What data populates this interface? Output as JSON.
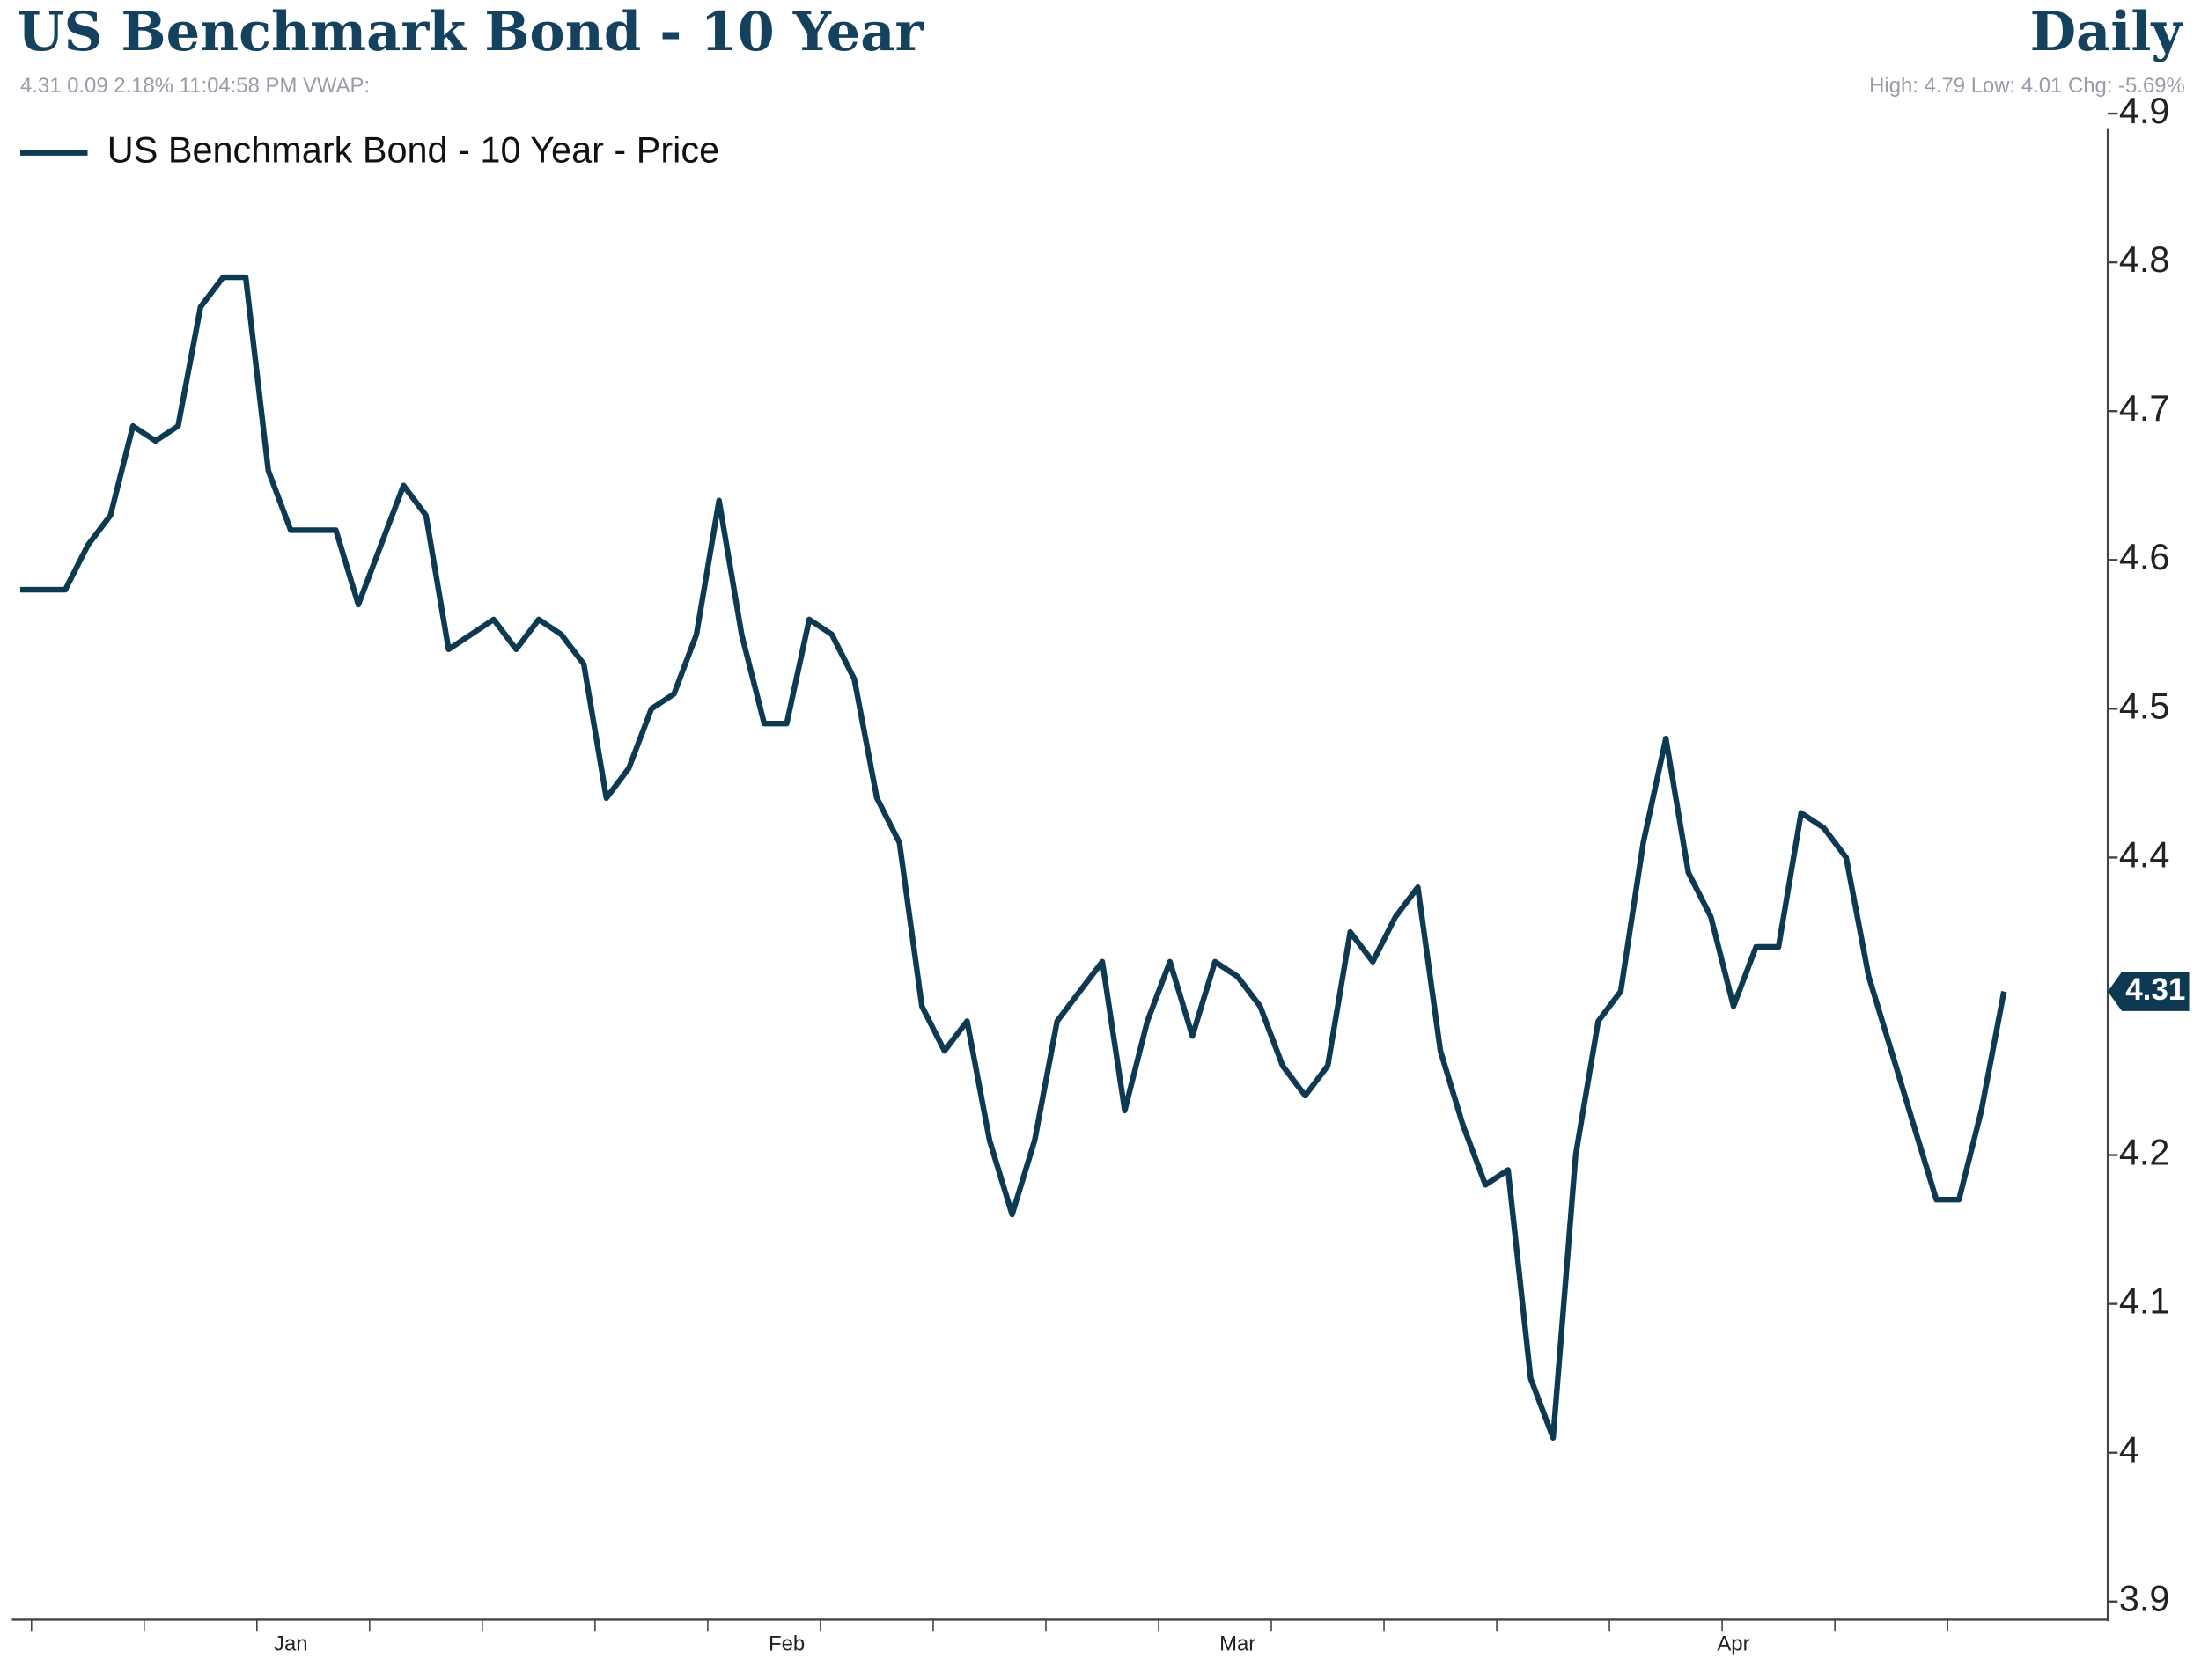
{
  "chart_data": {
    "type": "line",
    "title": "US Benchmark Bond - 10 Year",
    "subtitle": "Daily",
    "info_left": "4.31 0.09 2.18% 11:04:58 PM VWAP:",
    "info_right": "High: 4.79 Low: 4.01 Chg: -5.69%",
    "categories": [
      null,
      null,
      null,
      null,
      null,
      null,
      null,
      null,
      null,
      null,
      null,
      null,
      "Jan",
      null,
      null,
      null,
      null,
      null,
      null,
      null,
      null,
      null,
      null,
      null,
      null,
      null,
      null,
      null,
      null,
      null,
      null,
      null,
      null,
      null,
      "Feb",
      null,
      null,
      null,
      null,
      null,
      null,
      null,
      null,
      null,
      null,
      null,
      null,
      null,
      null,
      null,
      null,
      null,
      null,
      null,
      "Mar",
      null,
      null,
      null,
      null,
      null,
      null,
      null,
      null,
      null,
      null,
      null,
      null,
      null,
      null,
      null,
      null,
      null,
      null,
      null,
      null,
      null,
      "Apr",
      null,
      null,
      null,
      null,
      null,
      null,
      null,
      null,
      null,
      null,
      null,
      null
    ],
    "series": [
      {
        "name": "US Benchmark Bond - 10 Year - Price",
        "color": "#0d3a52",
        "values": [
          4.58,
          4.58,
          4.58,
          4.61,
          4.63,
          4.69,
          4.68,
          4.69,
          4.77,
          4.79,
          4.79,
          4.66,
          4.62,
          4.62,
          4.62,
          4.57,
          4.61,
          4.65,
          4.63,
          4.54,
          4.55,
          4.56,
          4.54,
          4.56,
          4.55,
          4.53,
          4.44,
          4.46,
          4.5,
          4.51,
          4.55,
          4.64,
          4.55,
          4.49,
          4.49,
          4.56,
          4.55,
          4.52,
          4.44,
          4.41,
          4.3,
          4.27,
          4.29,
          4.21,
          4.16,
          4.21,
          4.29,
          4.31,
          4.33,
          4.23,
          4.29,
          4.33,
          4.28,
          4.33,
          4.32,
          4.3,
          4.26,
          4.24,
          4.26,
          4.35,
          4.33,
          4.36,
          4.38,
          4.27,
          4.22,
          4.18,
          4.19,
          4.05,
          4.01,
          4.2,
          4.29,
          4.31,
          4.41,
          4.48,
          4.39,
          4.36,
          4.3,
          4.34,
          4.34,
          4.43,
          4.42,
          4.4,
          4.32,
          4.27,
          4.22,
          4.17,
          4.17,
          4.23,
          4.31
        ]
      }
    ],
    "ylim": [
      3.9,
      4.9
    ],
    "yticks": [
      3.9,
      4,
      4.1,
      4.2,
      4.4,
      4.5,
      4.6,
      4.7,
      4.8,
      4.9
    ],
    "grid": false
  }
}
